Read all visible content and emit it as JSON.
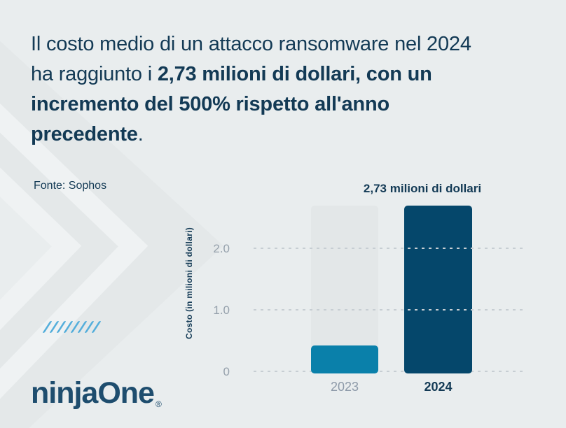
{
  "headline": {
    "text_regular": "Il costo medio di un attacco ransomware nel 2024 ha raggiunto i ",
    "text_bold": "2,73 milioni di dollari, con un incremento del 500% rispetto all'anno precedente",
    "text_suffix": "."
  },
  "source_label": "Fonte: Sophos",
  "logo": {
    "text": "ninjaOne",
    "mark": "®"
  },
  "colors": {
    "background": "#E9EDEE",
    "headline_navy": "#133A55",
    "bar_2023_teal": "#0A80AA",
    "bar_2024_navy": "#05476B",
    "ghost_bar_gray": "#E3E7E8",
    "gridline_gray": "#C7CED3",
    "tick_gray": "#96A1AC",
    "label_2023_gray": "#8C99A8",
    "logo_navy": "#1E4D6E",
    "slashes_blue": "#54AEDB"
  },
  "chart_data": {
    "type": "bar",
    "categories": [
      "2023",
      "2024"
    ],
    "values": [
      0.45,
      2.73
    ],
    "series_colors": [
      "#0A80AA",
      "#05476B"
    ],
    "annotation": "2,73 milioni di dollari",
    "ylabel": "Costo (in milioni di dollari)",
    "xlabel": "",
    "title": "",
    "yticks": [
      {
        "value": 2.0,
        "label": "2.0"
      },
      {
        "value": 1.0,
        "label": "1.0"
      },
      {
        "value": 0,
        "label": "0"
      }
    ],
    "ylim": [
      0,
      2.73
    ],
    "grid": "dashed-horizontal",
    "legend_position": "none",
    "ghost_bar_behind_2023_height": 2.73
  }
}
